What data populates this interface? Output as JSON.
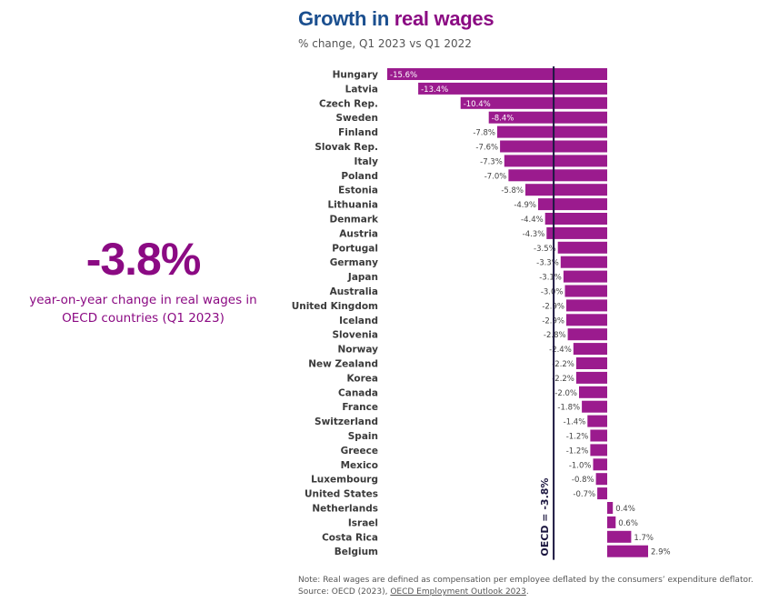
{
  "header": {
    "title_part1": "Growth in ",
    "title_part2": "real wages",
    "subtitle": "% change, Q1 2023 vs Q1 2022"
  },
  "kpi": {
    "value": "-3.8%",
    "label": "year-on-year change in real wages in OECD countries (Q1 2023)"
  },
  "footer": {
    "note": "Note: Real wages are defined as compensation per employee deflated by the consumers’ expenditure deflator.",
    "source_prefix": "Source: OECD (2023), ",
    "source_link": "OECD Employment Outlook 2023",
    "source_suffix": "."
  },
  "colors": {
    "bar": "#9b1b8e",
    "title_blue": "#1b4f8f",
    "accent": "#8b0a83",
    "reference_line": "#1c1740"
  },
  "chart_data": {
    "type": "bar",
    "orientation": "horizontal",
    "title": "Growth in real wages",
    "subtitle": "% change, Q1 2023 vs Q1 2022",
    "categories": [
      "Hungary",
      "Latvia",
      "Czech Rep.",
      "Sweden",
      "Finland",
      "Slovak Rep.",
      "Italy",
      "Poland",
      "Estonia",
      "Lithuania",
      "Denmark",
      "Austria",
      "Portugal",
      "Germany",
      "Japan",
      "Australia",
      "United Kingdom",
      "Iceland",
      "Slovenia",
      "Norway",
      "New Zealand",
      "Korea",
      "Canada",
      "France",
      "Switzerland",
      "Spain",
      "Greece",
      "Mexico",
      "Luxembourg",
      "United States",
      "Netherlands",
      "Israel",
      "Costa Rica",
      "Belgium"
    ],
    "values": [
      -15.6,
      -13.4,
      -10.4,
      -8.4,
      -7.8,
      -7.6,
      -7.3,
      -7.0,
      -5.8,
      -4.9,
      -4.4,
      -4.3,
      -3.5,
      -3.3,
      -3.1,
      -3.0,
      -2.9,
      -2.9,
      -2.8,
      -2.4,
      -2.2,
      -2.2,
      -2.0,
      -1.8,
      -1.4,
      -1.2,
      -1.2,
      -1.0,
      -0.8,
      -0.7,
      0.4,
      0.6,
      1.7,
      2.9
    ],
    "labels": [
      "-15.6%",
      "-13.4%",
      "-10.4%",
      "-8.4%",
      "-7.8%",
      "-7.6%",
      "-7.3%",
      "-7.0%",
      "-5.8%",
      "-4.9%",
      "-4.4%",
      "-4.3%",
      "-3.5%",
      "-3.3%",
      "-3.1%",
      "-3.0%",
      "-2.9%",
      "-2.9%",
      "-2.8%",
      "-2.4%",
      "-2.2%",
      "-2.2%",
      "-2.0%",
      "-1.8%",
      "-1.4%",
      "-1.2%",
      "-1.2%",
      "-1.0%",
      "-0.8%",
      "-0.7%",
      "0.4%",
      "0.6%",
      "1.7%",
      "2.9%"
    ],
    "xlim": [
      -15.6,
      2.9
    ],
    "reference": {
      "value": -3.8,
      "label": "OECD = -3.8%"
    },
    "grid": false,
    "legend": "none"
  }
}
